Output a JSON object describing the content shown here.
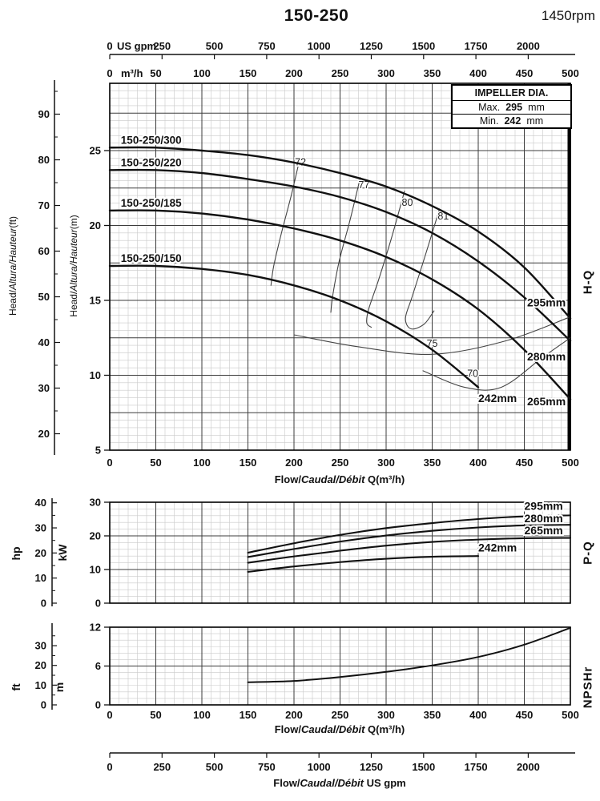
{
  "page": {
    "title": "150-250",
    "rpm": "1450rpm"
  },
  "impeller_box": {
    "title": "IMPELLER DIA.",
    "max_label": "Max.",
    "max_value": "295",
    "min_label": "Min.",
    "min_value": "242",
    "unit": "mm"
  },
  "axis_titles": {
    "flow_m3h": {
      "pre": "Flow/",
      "italic": "Caudal/Débit",
      "post": " Q(m³/h)"
    },
    "flow_gpm": {
      "pre": "Flow/",
      "italic": "Caudal/Débit",
      "post": "  US gpm"
    },
    "head_ft": {
      "pre": "Head/",
      "italic": "Altura/Hauteur",
      "post": "(ft)"
    },
    "head_m": {
      "pre": "Head/",
      "italic": "Altura/Hauteur",
      "post": "(m)"
    },
    "top_gpm_unit": "US gpm",
    "top_m3h_unit": "m³/h",
    "hp": "hp",
    "kw": "kW",
    "ft": "ft",
    "m": "m",
    "section_hq": "H-Q",
    "section_pq": "P-Q",
    "section_npshr": "NPSHr"
  },
  "chart_data": [
    {
      "type": "line",
      "name": "H-Q",
      "xlabel": "Flow/Caudal/Débit Q(m³/h)",
      "ylabel_ft": "Head/Altura/Hauteur(ft)",
      "ylabel_m": "Head/Altura/Hauteur(m)",
      "xlim": [
        0,
        500
      ],
      "x_ticks": [
        0,
        50,
        100,
        150,
        200,
        250,
        300,
        350,
        400,
        450,
        500
      ],
      "ylim_m": [
        5,
        29.5
      ],
      "y_ticks_m": [
        5,
        10,
        15,
        20,
        25
      ],
      "y_ticks_ft": [
        20,
        30,
        40,
        50,
        60,
        70,
        80,
        90
      ],
      "series": [
        {
          "name": "150-250/300",
          "impeller": "295mm",
          "points": [
            [
              0,
              25.2
            ],
            [
              50,
              25.2
            ],
            [
              100,
              25.0
            ],
            [
              150,
              24.7
            ],
            [
              200,
              24.2
            ],
            [
              250,
              23.5
            ],
            [
              300,
              22.6
            ],
            [
              350,
              21.3
            ],
            [
              400,
              19.6
            ],
            [
              450,
              17.2
            ],
            [
              500,
              13.8
            ]
          ]
        },
        {
          "name": "150-250/220",
          "impeller": "280mm",
          "points": [
            [
              0,
              23.7
            ],
            [
              50,
              23.7
            ],
            [
              100,
              23.5
            ],
            [
              150,
              23.1
            ],
            [
              200,
              22.6
            ],
            [
              250,
              21.9
            ],
            [
              300,
              20.9
            ],
            [
              350,
              19.5
            ],
            [
              400,
              17.6
            ],
            [
              450,
              15.2
            ],
            [
              500,
              12.3
            ]
          ]
        },
        {
          "name": "150-250/185",
          "impeller": "265mm",
          "points": [
            [
              0,
              21.0
            ],
            [
              50,
              21.0
            ],
            [
              100,
              20.8
            ],
            [
              150,
              20.4
            ],
            [
              200,
              19.8
            ],
            [
              250,
              19.0
            ],
            [
              300,
              17.9
            ],
            [
              350,
              16.4
            ],
            [
              400,
              14.4
            ],
            [
              450,
              11.7
            ],
            [
              500,
              8.4
            ]
          ]
        },
        {
          "name": "150-250/150",
          "impeller": "242mm",
          "points": [
            [
              0,
              17.3
            ],
            [
              50,
              17.3
            ],
            [
              100,
              17.1
            ],
            [
              150,
              16.7
            ],
            [
              200,
              16.0
            ],
            [
              250,
              15.0
            ],
            [
              300,
              13.6
            ],
            [
              350,
              11.7
            ],
            [
              400,
              9.2
            ]
          ]
        }
      ],
      "impeller_labels": [
        {
          "text": "295mm",
          "at": [
            453,
            14.6
          ]
        },
        {
          "text": "280mm",
          "at": [
            453,
            11.0
          ]
        },
        {
          "text": "242mm",
          "at": [
            400,
            8.2
          ]
        },
        {
          "text": "265mm",
          "at": [
            453,
            8.0
          ]
        }
      ],
      "efficiency_contours": [
        {
          "value": 72,
          "label_at": [
            201,
            24.0
          ],
          "points": [
            [
              205,
              24.1
            ],
            [
              197,
              22.0
            ],
            [
              186,
              19.4
            ],
            [
              178,
              17.3
            ],
            [
              175,
              16.0
            ]
          ]
        },
        {
          "value": 77,
          "label_at": [
            270,
            22.5
          ],
          "points": [
            [
              272,
              23.2
            ],
            [
              261,
              20.4
            ],
            [
              249,
              17.6
            ],
            [
              242,
              15.3
            ],
            [
              240,
              14.2
            ]
          ]
        },
        {
          "value": 80,
          "label_at": [
            317,
            21.3
          ],
          "points": [
            [
              320,
              22.3
            ],
            [
              306,
              19.2
            ],
            [
              292,
              16.4
            ],
            [
              281,
              14.4
            ],
            [
              279,
              13.5
            ],
            [
              284,
              13.2
            ]
          ]
        },
        {
          "value": 81,
          "label_at": [
            356,
            20.4
          ],
          "points": [
            [
              358,
              21.1
            ],
            [
              342,
              17.9
            ],
            [
              328,
              15.2
            ],
            [
              321,
              13.8
            ],
            [
              327,
              13.1
            ],
            [
              341,
              13.4
            ],
            [
              352,
              14.3
            ]
          ]
        },
        {
          "value": 75,
          "label_at": [
            344,
            11.9
          ],
          "points": [
            [
              200,
              12.7
            ],
            [
              270,
              11.9
            ],
            [
              350,
              11.4
            ],
            [
              430,
              12.3
            ],
            [
              500,
              13.9
            ]
          ]
        },
        {
          "value": 70,
          "label_at": [
            388,
            9.9
          ],
          "points": [
            [
              340,
              10.3
            ],
            [
              385,
              9.2
            ],
            [
              425,
              9.2
            ],
            [
              470,
              11.2
            ],
            [
              500,
              12.5
            ]
          ]
        }
      ]
    },
    {
      "type": "line",
      "name": "P-Q",
      "ylabel_hp": "hp",
      "ylabel_kw": "kW",
      "xlim": [
        0,
        500
      ],
      "ylim_kw": [
        0,
        30
      ],
      "y_ticks_kw": [
        0,
        10,
        20,
        30
      ],
      "y_ticks_hp": [
        0,
        10,
        20,
        30,
        40
      ],
      "series": [
        {
          "name": "295mm",
          "label_at": [
            450,
            27.7
          ],
          "points": [
            [
              150,
              15.0
            ],
            [
              200,
              17.8
            ],
            [
              250,
              20.3
            ],
            [
              300,
              22.3
            ],
            [
              350,
              23.8
            ],
            [
              400,
              25.0
            ],
            [
              450,
              25.8
            ],
            [
              500,
              26.1
            ]
          ]
        },
        {
          "name": "280mm",
          "label_at": [
            450,
            24.0
          ],
          "points": [
            [
              150,
              13.7
            ],
            [
              200,
              16.1
            ],
            [
              250,
              18.3
            ],
            [
              300,
              20.1
            ],
            [
              350,
              21.5
            ],
            [
              400,
              22.5
            ],
            [
              450,
              23.1
            ],
            [
              500,
              23.3
            ]
          ]
        },
        {
          "name": "265mm",
          "label_at": [
            450,
            20.5
          ],
          "points": [
            [
              150,
              12.0
            ],
            [
              200,
              13.9
            ],
            [
              250,
              15.6
            ],
            [
              300,
              17.1
            ],
            [
              350,
              18.2
            ],
            [
              400,
              18.9
            ],
            [
              450,
              19.3
            ],
            [
              500,
              19.4
            ]
          ]
        },
        {
          "name": "242mm",
          "label_at": [
            400,
            15.3
          ],
          "points": [
            [
              150,
              9.3
            ],
            [
              200,
              10.9
            ],
            [
              250,
              12.2
            ],
            [
              300,
              13.2
            ],
            [
              350,
              13.8
            ],
            [
              400,
              14.0
            ]
          ]
        }
      ]
    },
    {
      "type": "line",
      "name": "NPSHr",
      "xlabel": "Flow/Caudal/Débit Q(m³/h)",
      "ylabel_ft": "ft",
      "ylabel_m": "m",
      "xlim": [
        0,
        500
      ],
      "x_ticks": [
        0,
        50,
        100,
        150,
        200,
        250,
        300,
        350,
        400,
        450,
        500
      ],
      "ylim_m": [
        0,
        12
      ],
      "y_ticks_m": [
        0,
        6,
        12
      ],
      "y_ticks_ft": [
        0,
        10,
        20,
        30
      ],
      "series": [
        {
          "name": "NPSHr",
          "points": [
            [
              150,
              3.5
            ],
            [
              200,
              3.7
            ],
            [
              250,
              4.3
            ],
            [
              300,
              5.1
            ],
            [
              350,
              6.1
            ],
            [
              400,
              7.4
            ],
            [
              450,
              9.3
            ],
            [
              500,
              11.9
            ]
          ]
        }
      ]
    },
    {
      "type": "axis",
      "name": "US gpm",
      "unit": "US gpm",
      "ticks": [
        0,
        250,
        500,
        750,
        1000,
        1250,
        1500,
        1750,
        2000
      ]
    }
  ]
}
